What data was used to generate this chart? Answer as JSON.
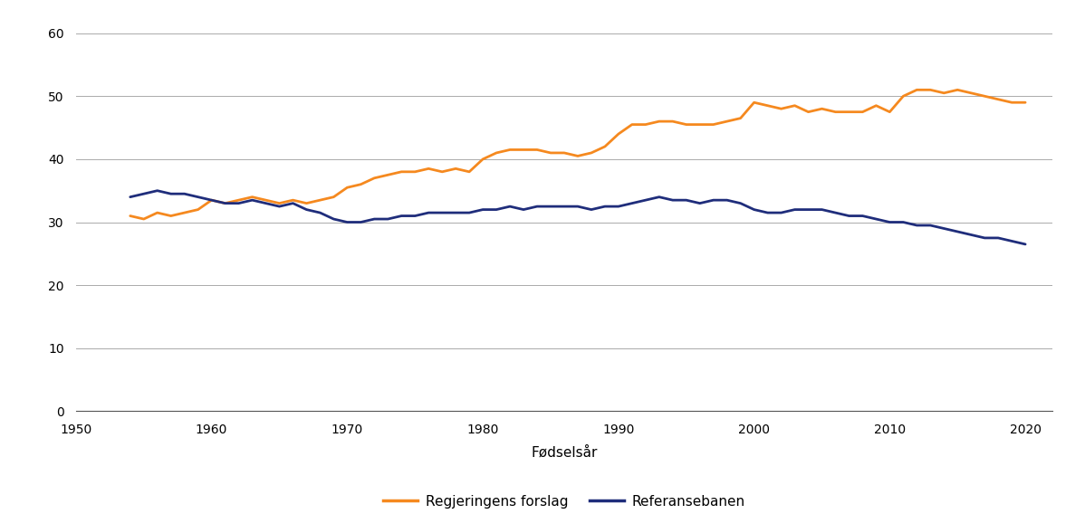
{
  "title": "",
  "xlabel": "Fødselsår",
  "ylabel": "",
  "xlim": [
    1950,
    2022
  ],
  "ylim": [
    0,
    62
  ],
  "yticks": [
    0,
    10,
    20,
    30,
    40,
    50,
    60
  ],
  "xticks": [
    1950,
    1960,
    1970,
    1980,
    1990,
    2000,
    2010,
    2020
  ],
  "orange_color": "#F5891F",
  "navy_color": "#1F2D7B",
  "legend_orange": "Regjeringens forslag",
  "legend_navy": "Referansebanen",
  "orange_x": [
    1954,
    1955,
    1956,
    1957,
    1958,
    1959,
    1960,
    1961,
    1962,
    1963,
    1964,
    1965,
    1966,
    1967,
    1968,
    1969,
    1970,
    1971,
    1972,
    1973,
    1974,
    1975,
    1976,
    1977,
    1978,
    1979,
    1980,
    1981,
    1982,
    1983,
    1984,
    1985,
    1986,
    1987,
    1988,
    1989,
    1990,
    1991,
    1992,
    1993,
    1994,
    1995,
    1996,
    1997,
    1998,
    1999,
    2000,
    2001,
    2002,
    2003,
    2004,
    2005,
    2006,
    2007,
    2008,
    2009,
    2010,
    2011,
    2012,
    2013,
    2014,
    2015,
    2016,
    2017,
    2018,
    2019,
    2020
  ],
  "orange_y": [
    31.0,
    30.5,
    31.5,
    31.0,
    31.5,
    32.0,
    33.5,
    33.0,
    33.5,
    34.0,
    33.5,
    33.0,
    33.5,
    33.0,
    33.5,
    34.0,
    35.5,
    36.0,
    37.0,
    37.5,
    38.0,
    38.0,
    38.5,
    38.0,
    38.5,
    38.0,
    40.0,
    41.0,
    41.5,
    41.5,
    41.5,
    41.0,
    41.0,
    40.5,
    41.0,
    42.0,
    44.0,
    45.5,
    45.5,
    46.0,
    46.0,
    45.5,
    45.5,
    45.5,
    46.0,
    46.5,
    49.0,
    48.5,
    48.0,
    48.5,
    47.5,
    48.0,
    47.5,
    47.5,
    47.5,
    48.5,
    47.5,
    50.0,
    51.0,
    51.0,
    50.5,
    51.0,
    50.5,
    50.0,
    49.5,
    49.0,
    49.0
  ],
  "navy_x": [
    1954,
    1955,
    1956,
    1957,
    1958,
    1959,
    1960,
    1961,
    1962,
    1963,
    1964,
    1965,
    1966,
    1967,
    1968,
    1969,
    1970,
    1971,
    1972,
    1973,
    1974,
    1975,
    1976,
    1977,
    1978,
    1979,
    1980,
    1981,
    1982,
    1983,
    1984,
    1985,
    1986,
    1987,
    1988,
    1989,
    1990,
    1991,
    1992,
    1993,
    1994,
    1995,
    1996,
    1997,
    1998,
    1999,
    2000,
    2001,
    2002,
    2003,
    2004,
    2005,
    2006,
    2007,
    2008,
    2009,
    2010,
    2011,
    2012,
    2013,
    2014,
    2015,
    2016,
    2017,
    2018,
    2019,
    2020
  ],
  "navy_y": [
    34.0,
    34.5,
    35.0,
    34.5,
    34.5,
    34.0,
    33.5,
    33.0,
    33.0,
    33.5,
    33.0,
    32.5,
    33.0,
    32.0,
    31.5,
    30.5,
    30.0,
    30.0,
    30.5,
    30.5,
    31.0,
    31.0,
    31.5,
    31.5,
    31.5,
    31.5,
    32.0,
    32.0,
    32.5,
    32.0,
    32.5,
    32.5,
    32.5,
    32.5,
    32.0,
    32.5,
    32.5,
    33.0,
    33.5,
    34.0,
    33.5,
    33.5,
    33.0,
    33.5,
    33.5,
    33.0,
    32.0,
    31.5,
    31.5,
    32.0,
    32.0,
    32.0,
    31.5,
    31.0,
    31.0,
    30.5,
    30.0,
    30.0,
    29.5,
    29.5,
    29.0,
    28.5,
    28.0,
    27.5,
    27.5,
    27.0,
    26.5
  ],
  "bg_color": "#ffffff",
  "grid_color": "#aaaaaa",
  "spine_color": "#555555",
  "fontsize_ticks": 10,
  "fontsize_xlabel": 11,
  "fontsize_legend": 11,
  "linewidth": 2.0,
  "legend_handlelength": 2.5,
  "legend_columnspacing": 1.5
}
